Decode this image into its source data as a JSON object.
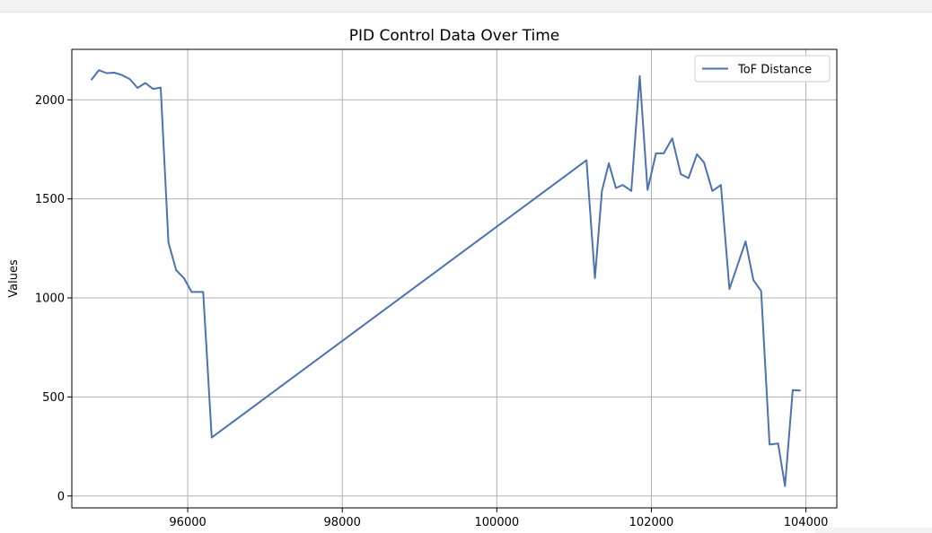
{
  "chart_data": {
    "type": "line",
    "title": "PID Control Data Over Time",
    "xlabel": "",
    "ylabel": "Values",
    "xlim": [
      94500,
      104400
    ],
    "ylim": [
      -60,
      2255
    ],
    "x_ticks": [
      96000,
      98000,
      100000,
      102000,
      104000
    ],
    "y_ticks": [
      0,
      500,
      1000,
      1500,
      2000
    ],
    "grid": true,
    "legend_position": "top-right",
    "series": [
      {
        "name": "ToF Distance",
        "color": "#4c72b0",
        "x": [
          94750,
          94850,
          94950,
          95050,
          95150,
          95250,
          95350,
          95450,
          95550,
          95650,
          95750,
          95850,
          95950,
          96050,
          96200,
          96310,
          101160,
          101270,
          101360,
          101450,
          101540,
          101630,
          101740,
          101850,
          101950,
          102060,
          102160,
          102270,
          102380,
          102480,
          102590,
          102680,
          102790,
          102900,
          103010,
          103220,
          103320,
          103420,
          103530,
          103640,
          103730,
          103830,
          103930
        ],
        "y": [
          2100,
          2150,
          2135,
          2137,
          2125,
          2105,
          2060,
          2085,
          2055,
          2062,
          1280,
          1140,
          1100,
          1030,
          1030,
          295,
          1695,
          1100,
          1540,
          1680,
          1555,
          1570,
          1540,
          2120,
          1545,
          1730,
          1730,
          1805,
          1625,
          1605,
          1725,
          1685,
          1540,
          1570,
          1045,
          1285,
          1090,
          1035,
          260,
          265,
          50,
          535,
          532
        ]
      }
    ]
  }
}
